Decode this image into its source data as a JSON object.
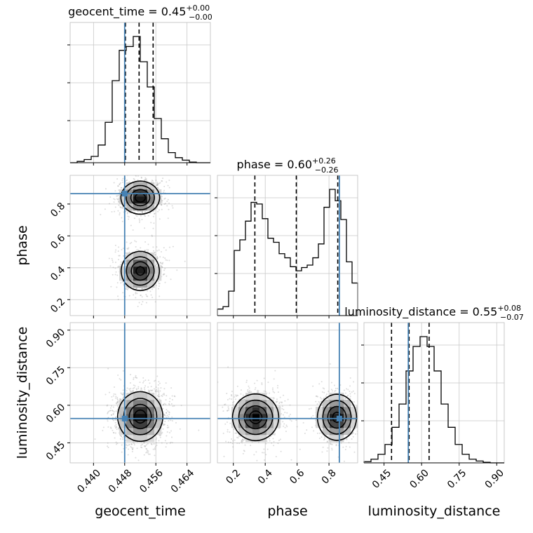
{
  "chart_data": {
    "type": "corner",
    "grid": true,
    "truth_color": "#4682b4",
    "params": [
      {
        "name": "geocent_time",
        "label": "geocent_time",
        "title_prefix": "geocent_time = 0.45",
        "title_up": "+0.00",
        "title_down": "−0.00",
        "range": [
          0.434,
          0.47
        ],
        "ticks": [
          0.44,
          0.448,
          0.456,
          0.464
        ],
        "tick_labels": [
          "0.440",
          "0.448",
          "0.456",
          "0.464"
        ],
        "quantiles": [
          0.4482,
          0.4517,
          0.4553
        ],
        "truth": 0.448
      },
      {
        "name": "phase",
        "label": "phase",
        "title_prefix": "phase = 0.60",
        "title_up": "+0.26",
        "title_down": "−0.26",
        "range": [
          0.1,
          0.98
        ],
        "ticks": [
          0.2,
          0.4,
          0.6,
          0.8
        ],
        "tick_labels": [
          "0.2",
          "0.4",
          "0.6",
          "0.8"
        ],
        "quantiles": [
          0.335,
          0.595,
          0.855
        ],
        "truth": 0.865
      },
      {
        "name": "luminosity_distance",
        "label": "luminosity_distance",
        "title_prefix": "luminosity_distance = 0.55",
        "title_up": "+0.08",
        "title_down": "−0.07",
        "range": [
          0.37,
          0.93
        ],
        "ticks": [
          0.45,
          0.6,
          0.75,
          0.9
        ],
        "tick_labels": [
          "0.45",
          "0.60",
          "0.75",
          "0.90"
        ],
        "quantiles": [
          0.48,
          0.55,
          0.63
        ],
        "truth": 0.547
      }
    ],
    "histograms": [
      {
        "param": "geocent_time",
        "values": [
          0,
          2,
          5,
          10,
          28,
          64,
          130,
          178,
          184,
          200,
          160,
          120,
          70,
          38,
          16,
          8,
          4,
          1,
          0,
          0
        ]
      },
      {
        "param": "phase",
        "values": [
          8,
          11,
          30,
          80,
          93,
          116,
          139,
          137,
          119,
          95,
          90,
          76,
          71,
          60,
          55,
          59,
          62,
          71,
          88,
          133,
          155,
          141,
          118,
          66,
          40
        ]
      },
      {
        "param": "luminosity_distance",
        "values": [
          2,
          6,
          14,
          30,
          58,
          96,
          150,
          190,
          206,
          190,
          150,
          96,
          58,
          30,
          14,
          6,
          3,
          1,
          0,
          0
        ]
      }
    ],
    "pairs": [
      {
        "x": "geocent_time",
        "y": "phase",
        "peaks": [
          {
            "mx": 0.452,
            "my": 0.84,
            "sx": 0.0024,
            "sy": 0.05,
            "w": 1.0
          },
          {
            "mx": 0.452,
            "my": 0.38,
            "sx": 0.0024,
            "sy": 0.06,
            "w": 0.95
          }
        ]
      },
      {
        "x": "geocent_time",
        "y": "luminosity_distance",
        "peaks": [
          {
            "mx": 0.452,
            "my": 0.555,
            "sx": 0.0028,
            "sy": 0.048,
            "w": 1.0
          }
        ]
      },
      {
        "x": "phase",
        "y": "luminosity_distance",
        "peaks": [
          {
            "mx": 0.34,
            "my": 0.552,
            "sx": 0.07,
            "sy": 0.045,
            "w": 1.0
          },
          {
            "mx": 0.85,
            "my": 0.552,
            "sx": 0.06,
            "sy": 0.045,
            "w": 0.95
          }
        ]
      }
    ]
  }
}
